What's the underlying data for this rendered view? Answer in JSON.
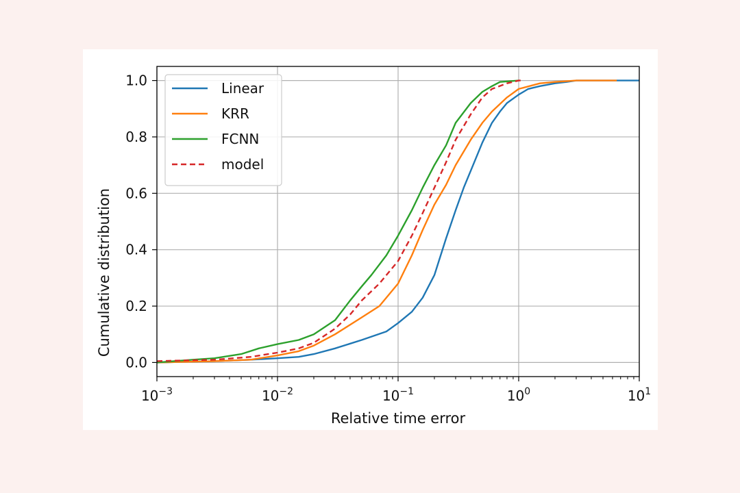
{
  "chart_data": {
    "type": "line",
    "title": "",
    "xlabel": "Relative time error",
    "ylabel": "Cumulative distribution",
    "xscale": "log",
    "xlim": [
      0.001,
      10
    ],
    "ylim": [
      -0.05,
      1.05
    ],
    "grid": true,
    "legend_position": "top-left",
    "x_ticks": [
      {
        "value": 0.001,
        "base": "10",
        "exp": "−3"
      },
      {
        "value": 0.01,
        "base": "10",
        "exp": "−2"
      },
      {
        "value": 0.1,
        "base": "10",
        "exp": "−1"
      },
      {
        "value": 1,
        "base": "10",
        "exp": "0"
      },
      {
        "value": 10,
        "base": "10",
        "exp": "1"
      }
    ],
    "y_ticks": [
      "0.0",
      "0.2",
      "0.4",
      "0.6",
      "0.8",
      "1.0"
    ],
    "series": [
      {
        "name": "Linear",
        "color": "#1f77b4",
        "dash": "solid",
        "x": [
          0.001,
          0.003,
          0.006,
          0.01,
          0.015,
          0.02,
          0.03,
          0.05,
          0.08,
          0.1,
          0.13,
          0.16,
          0.2,
          0.25,
          0.3,
          0.35,
          0.4,
          0.5,
          0.6,
          0.7,
          0.8,
          1.0,
          1.2,
          1.5,
          2.0,
          2.5,
          3.0,
          5.0,
          10.0
        ],
        "y": [
          0.0,
          0.005,
          0.01,
          0.015,
          0.02,
          0.03,
          0.05,
          0.08,
          0.11,
          0.14,
          0.18,
          0.23,
          0.31,
          0.44,
          0.54,
          0.62,
          0.68,
          0.78,
          0.85,
          0.89,
          0.92,
          0.95,
          0.97,
          0.98,
          0.99,
          0.995,
          1.0,
          1.0,
          1.0
        ]
      },
      {
        "name": "KRR",
        "color": "#ff7f0e",
        "dash": "solid",
        "x": [
          0.001,
          0.003,
          0.006,
          0.01,
          0.015,
          0.02,
          0.03,
          0.05,
          0.07,
          0.1,
          0.13,
          0.16,
          0.2,
          0.25,
          0.3,
          0.4,
          0.5,
          0.6,
          0.8,
          1.0,
          1.5,
          2.0,
          3.0,
          6.5
        ],
        "y": [
          0.0,
          0.005,
          0.01,
          0.025,
          0.04,
          0.06,
          0.1,
          0.16,
          0.2,
          0.28,
          0.38,
          0.47,
          0.56,
          0.63,
          0.7,
          0.79,
          0.85,
          0.89,
          0.94,
          0.97,
          0.99,
          0.995,
          1.0,
          1.0
        ]
      },
      {
        "name": "FCNN",
        "color": "#2ca02c",
        "dash": "solid",
        "x": [
          0.001,
          0.002,
          0.003,
          0.005,
          0.007,
          0.01,
          0.015,
          0.02,
          0.03,
          0.04,
          0.05,
          0.06,
          0.08,
          0.1,
          0.13,
          0.16,
          0.2,
          0.25,
          0.3,
          0.4,
          0.5,
          0.6,
          0.7,
          1.0
        ],
        "y": [
          0.0,
          0.01,
          0.015,
          0.03,
          0.05,
          0.065,
          0.08,
          0.1,
          0.15,
          0.22,
          0.27,
          0.31,
          0.38,
          0.45,
          0.54,
          0.62,
          0.7,
          0.77,
          0.85,
          0.92,
          0.96,
          0.98,
          0.995,
          1.0
        ]
      },
      {
        "name": "model",
        "color": "#d62728",
        "dash": "dashed",
        "x": [
          0.001,
          0.003,
          0.006,
          0.01,
          0.015,
          0.02,
          0.03,
          0.04,
          0.05,
          0.07,
          0.1,
          0.13,
          0.16,
          0.2,
          0.25,
          0.3,
          0.4,
          0.5,
          0.6,
          0.8,
          1.0,
          1.1
        ],
        "y": [
          0.005,
          0.01,
          0.02,
          0.035,
          0.05,
          0.07,
          0.12,
          0.17,
          0.22,
          0.28,
          0.36,
          0.45,
          0.53,
          0.62,
          0.71,
          0.79,
          0.88,
          0.94,
          0.97,
          0.99,
          1.0,
          1.0
        ]
      }
    ]
  }
}
